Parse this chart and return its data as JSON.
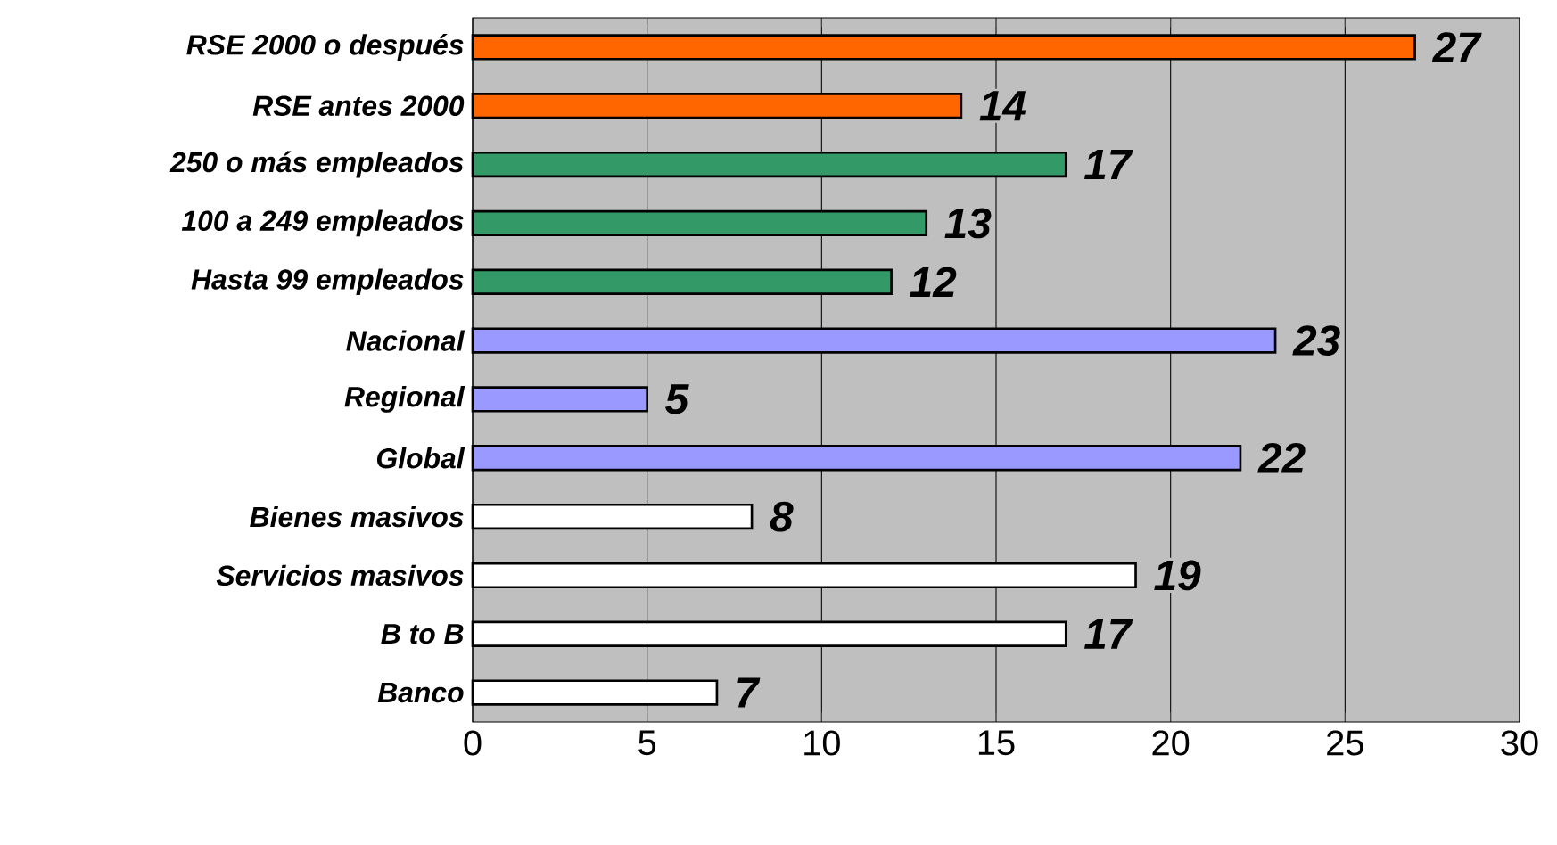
{
  "chart_data": {
    "type": "bar",
    "orientation": "horizontal",
    "categories": [
      "RSE 2000 o después",
      "RSE antes 2000",
      "250 o más empleados",
      "100 a 249 empleados",
      "Hasta 99 empleados",
      "Nacional",
      "Regional",
      "Global",
      "Bienes masivos",
      "Servicios masivos",
      "B to B",
      "Banco"
    ],
    "values": [
      27,
      14,
      17,
      13,
      12,
      23,
      5,
      22,
      8,
      19,
      17,
      7
    ],
    "colors": [
      "#ff6600",
      "#ff6600",
      "#339966",
      "#339966",
      "#339966",
      "#9999ff",
      "#9999ff",
      "#9999ff",
      "#ffffff",
      "#ffffff",
      "#ffffff",
      "#ffffff"
    ],
    "xlim": [
      0,
      30
    ],
    "xticks": [
      0,
      5,
      10,
      15,
      20,
      25,
      30
    ],
    "grid": "x",
    "data_labels": true
  }
}
